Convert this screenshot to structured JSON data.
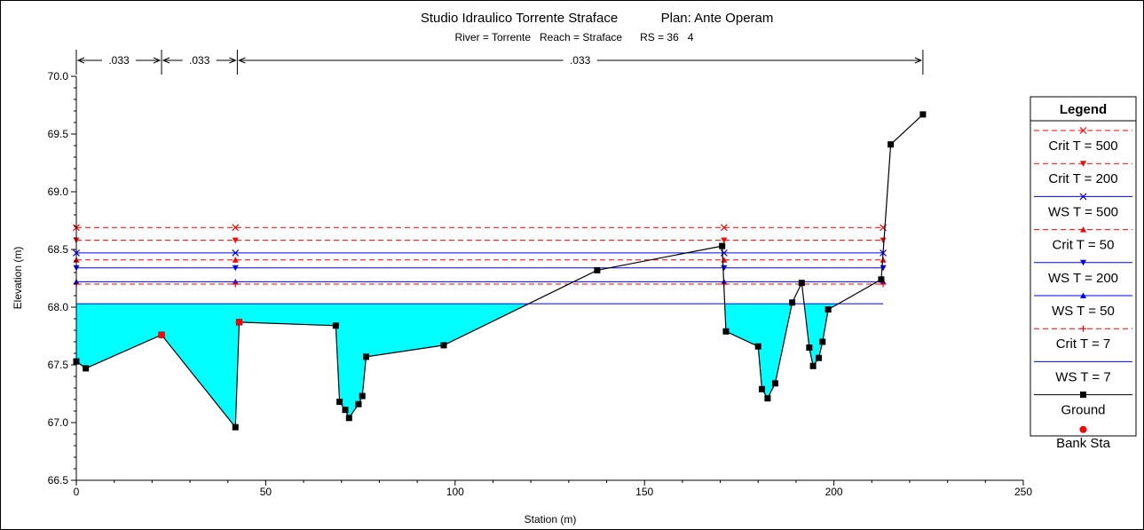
{
  "title": "Studio Idraulico Torrente Straface",
  "plan": "Plan: Ante Operam",
  "subtitle": "River = Torrente   Reach = Straface      RS = 36   4",
  "colors": {
    "water_fill": "#00ffff",
    "ground": "#000000",
    "bank": "#ff0000",
    "ws_line": "#0000ff",
    "crit_line": "#ff0000"
  },
  "chart_data": {
    "type": "line",
    "xlabel": "Station (m)",
    "ylabel": "Elevation (m)",
    "xlim": [
      0,
      250
    ],
    "ylim": [
      66.5,
      70.0
    ],
    "x_ticks": [
      "0",
      "50",
      "100",
      "150",
      "200",
      "250"
    ],
    "y_ticks": [
      "66.5",
      "67.0",
      "67.5",
      "68.0",
      "68.5",
      "69.0",
      "69.5",
      "70.0"
    ],
    "manning": [
      {
        "label": ".033",
        "from": 0,
        "to": 22.5
      },
      {
        "label": ".033",
        "from": 22.5,
        "to": 42.5
      },
      {
        "label": ".033",
        "from": 42.5,
        "to": 223.5
      }
    ],
    "ground": {
      "name": "Ground",
      "points": [
        [
          0,
          67.53
        ],
        [
          2.5,
          67.47
        ],
        [
          22.5,
          67.76
        ],
        [
          42,
          66.96
        ],
        [
          43,
          67.87
        ],
        [
          68.5,
          67.84
        ],
        [
          69.5,
          67.18
        ],
        [
          71,
          67.11
        ],
        [
          72,
          67.04
        ],
        [
          74.5,
          67.16
        ],
        [
          75.5,
          67.23
        ],
        [
          76.5,
          67.57
        ],
        [
          97,
          67.67
        ],
        [
          137.5,
          68.32
        ],
        [
          170.5,
          68.53
        ],
        [
          171.5,
          67.79
        ],
        [
          180,
          67.66
        ],
        [
          181,
          67.29
        ],
        [
          182.5,
          67.21
        ],
        [
          184.5,
          67.34
        ],
        [
          189,
          68.04
        ],
        [
          191.5,
          68.21
        ],
        [
          193.5,
          67.65
        ],
        [
          194.5,
          67.49
        ],
        [
          196,
          67.56
        ],
        [
          197,
          67.7
        ],
        [
          198.5,
          67.98
        ],
        [
          212.5,
          68.24
        ],
        [
          215,
          69.41
        ],
        [
          223.5,
          69.67
        ]
      ]
    },
    "bank_stations": [
      [
        22.5,
        67.76
      ],
      [
        43,
        67.87
      ]
    ],
    "water_surface_fill_elevation": 68.03,
    "profiles": [
      {
        "name": "Crit  T = 500",
        "elevation": 68.69,
        "line": "dashed",
        "color": "#ff0000",
        "marker": "x",
        "marker_color": "#ff0000"
      },
      {
        "name": "Crit  T = 200",
        "elevation": 68.58,
        "line": "dashed",
        "color": "#ff0000",
        "marker": "tri-down",
        "marker_color": "#ff0000"
      },
      {
        "name": "WS  T = 500",
        "elevation": 68.47,
        "line": "solid",
        "color": "#0000ff",
        "marker": "x",
        "marker_color": "#0000ff"
      },
      {
        "name": "Crit  T = 50",
        "elevation": 68.41,
        "line": "dashed",
        "color": "#ff0000",
        "marker": "tri-up",
        "marker_color": "#ff0000"
      },
      {
        "name": "WS  T = 200",
        "elevation": 68.34,
        "line": "solid",
        "color": "#0000ff",
        "marker": "tri-down",
        "marker_color": "#0000ff"
      },
      {
        "name": "WS  T = 50",
        "elevation": 68.22,
        "line": "solid",
        "color": "#0000ff",
        "marker": "tri-up",
        "marker_color": "#0000ff"
      },
      {
        "name": "Crit  T = 7",
        "elevation": 68.2,
        "line": "dashed",
        "color": "#ff0000",
        "marker": "plus",
        "marker_color": "#ff0000"
      },
      {
        "name": "WS  T = 7",
        "elevation": 68.03,
        "line": "solid",
        "color": "#0000ff",
        "marker": "none",
        "marker_color": "#0000ff"
      }
    ],
    "legend": {
      "title": "Legend",
      "position": "right",
      "entries": [
        {
          "label": "Crit  T = 500",
          "line": "dashed",
          "color": "#ff0000",
          "marker": "x"
        },
        {
          "label": "Crit  T = 200",
          "line": "dashed",
          "color": "#ff0000",
          "marker": "tri-down"
        },
        {
          "label": "WS  T = 500",
          "line": "solid",
          "color": "#0000ff",
          "marker": "x"
        },
        {
          "label": "Crit  T = 50",
          "line": "dashed",
          "color": "#ff0000",
          "marker": "tri-up"
        },
        {
          "label": "WS  T = 200",
          "line": "solid",
          "color": "#0000ff",
          "marker": "tri-down"
        },
        {
          "label": "WS  T = 50",
          "line": "solid",
          "color": "#0000ff",
          "marker": "tri-up"
        },
        {
          "label": "Crit  T = 7",
          "line": "dashed",
          "color": "#ff0000",
          "marker": "plus"
        },
        {
          "label": "WS  T = 7",
          "line": "solid",
          "color": "#0000ff",
          "marker": "none"
        },
        {
          "label": "Ground",
          "line": "solid",
          "color": "#000000",
          "marker": "square"
        },
        {
          "label": "Bank Sta",
          "line": "none",
          "color": "#ff0000",
          "marker": "circle"
        }
      ]
    }
  }
}
